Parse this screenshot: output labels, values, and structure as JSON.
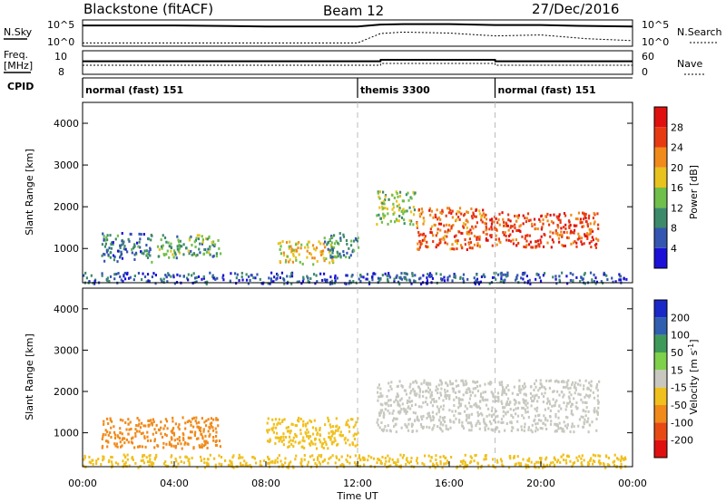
{
  "header": {
    "station": "Blackstone (fitACF)",
    "beam": "Beam 12",
    "date": "27/Dec/2016"
  },
  "top_panels": {
    "left_labels": {
      "nsky": "N.Sky",
      "freq": "Freq.",
      "freq_unit": "[MHz]",
      "cpid": "CPID"
    },
    "right_labels": {
      "nsearch": "N.Search",
      "nave": "Nave"
    },
    "noise_ticks_left": [
      "10^5",
      "10^0"
    ],
    "noise_ticks_right": [
      "10^5",
      "10^0"
    ],
    "freq_ticks_left": [
      "10",
      "8"
    ],
    "nave_ticks_right": [
      "60",
      "0"
    ]
  },
  "cpid_segments": [
    {
      "label": "normal (fast) 151",
      "start_hour": 0,
      "end_hour": 12
    },
    {
      "label": "themis 3300",
      "start_hour": 12,
      "end_hour": 18
    },
    {
      "label": "normal (fast) 151",
      "start_hour": 18,
      "end_hour": 24
    }
  ],
  "axes": {
    "y_label": "Slant Range [km]",
    "y_ticks": [
      "1000",
      "2000",
      "3000",
      "4000"
    ],
    "x_label": "Time UT",
    "x_ticks": [
      "00:00",
      "04:00",
      "08:00",
      "12:00",
      "16:00",
      "20:00",
      "00:00"
    ]
  },
  "colorbars": {
    "power": {
      "label": "Power [dB]",
      "ticks": [
        "4",
        "8",
        "12",
        "16",
        "20",
        "24",
        "28"
      ],
      "colors": [
        "#1a10d8",
        "#3456b0",
        "#3d8a6a",
        "#6fbf4a",
        "#e8c21e",
        "#f08a1a",
        "#e83a12",
        "#e01010"
      ]
    },
    "velocity": {
      "label": "Velocity [m s^-1]",
      "ticks": [
        "200",
        "100",
        "50",
        "15",
        "-15",
        "-50",
        "-100",
        "-200"
      ],
      "colors": [
        "#1a28c8",
        "#2f5fae",
        "#3f9a5a",
        "#7fd04a",
        "#c8c8c0",
        "#f0c01e",
        "#f08a1a",
        "#e84a14",
        "#e01010"
      ]
    }
  },
  "chart_data": [
    {
      "type": "line",
      "title": "N.Sky / N.Search noise",
      "x_hours": [
        0,
        2,
        4,
        6,
        8,
        10,
        12,
        13,
        14,
        16,
        18,
        20,
        22,
        24
      ],
      "series": [
        {
          "name": "N.Sky",
          "log10_values": [
            4.2,
            4.2,
            4.2,
            4.1,
            4.0,
            4.0,
            4.0,
            4.4,
            4.5,
            4.5,
            4.3,
            4.3,
            4.1,
            4.0
          ]
        },
        {
          "name": "N.Search",
          "log10_values": [
            0.5,
            0.5,
            0.5,
            0.5,
            0.5,
            0.5,
            0.5,
            2.5,
            2.8,
            2.6,
            2.0,
            2.2,
            1.4,
            1.0
          ]
        }
      ],
      "ylim_log10": [
        0,
        5
      ]
    },
    {
      "type": "line",
      "title": "Freq / Nave",
      "x_hours": [
        0,
        13,
        13.01,
        18,
        18.01,
        24
      ],
      "series": [
        {
          "name": "Freq",
          "values": [
            9.8,
            9.8,
            10.0,
            10.0,
            9.8,
            9.8
          ]
        },
        {
          "name": "Nave",
          "values": [
            25,
            25,
            30,
            30,
            25,
            25
          ]
        }
      ],
      "ylim": [
        8,
        11
      ]
    },
    {
      "type": "heatmap",
      "title": "Power",
      "xlabel": "Time UT",
      "ylabel": "Slant Range [km]",
      "xlim_hours": [
        0,
        24
      ],
      "ylim_km": [
        180,
        4500
      ],
      "regions": [
        {
          "t0": 0.8,
          "t1": 3.0,
          "r0": 700,
          "r1": 1400,
          "power_db": 8
        },
        {
          "t0": 3.2,
          "t1": 6.0,
          "r0": 800,
          "r1": 1350,
          "power_db": 12
        },
        {
          "t0": 8.5,
          "t1": 11.0,
          "r0": 650,
          "r1": 1200,
          "power_db": 18
        },
        {
          "t0": 10.5,
          "t1": 12.0,
          "r0": 800,
          "r1": 1400,
          "power_db": 10
        },
        {
          "t0": 12.8,
          "t1": 14.5,
          "r0": 1600,
          "r1": 2400,
          "power_db": 14
        },
        {
          "t0": 14.5,
          "t1": 17.5,
          "r0": 1000,
          "r1": 2000,
          "power_db": 24
        },
        {
          "t0": 17.5,
          "t1": 22.5,
          "r0": 1050,
          "r1": 1900,
          "power_db": 26
        },
        {
          "t0": 0.0,
          "t1": 23.8,
          "r0": 180,
          "r1": 450,
          "power_db": 6
        }
      ]
    },
    {
      "type": "heatmap",
      "title": "Velocity",
      "xlabel": "Time UT",
      "ylabel": "Slant Range [km]",
      "xlim_hours": [
        0,
        24
      ],
      "ylim_km": [
        180,
        4500
      ],
      "regions": [
        {
          "t0": 0.8,
          "t1": 6.0,
          "r0": 650,
          "r1": 1400,
          "velocity": -60
        },
        {
          "t0": 8.0,
          "t1": 12.0,
          "r0": 650,
          "r1": 1400,
          "velocity": -20
        },
        {
          "t0": 12.8,
          "t1": 22.5,
          "r0": 1050,
          "r1": 2300,
          "velocity": 0
        },
        {
          "t0": 0.0,
          "t1": 23.8,
          "r0": 180,
          "r1": 500,
          "velocity": -30
        }
      ]
    }
  ]
}
